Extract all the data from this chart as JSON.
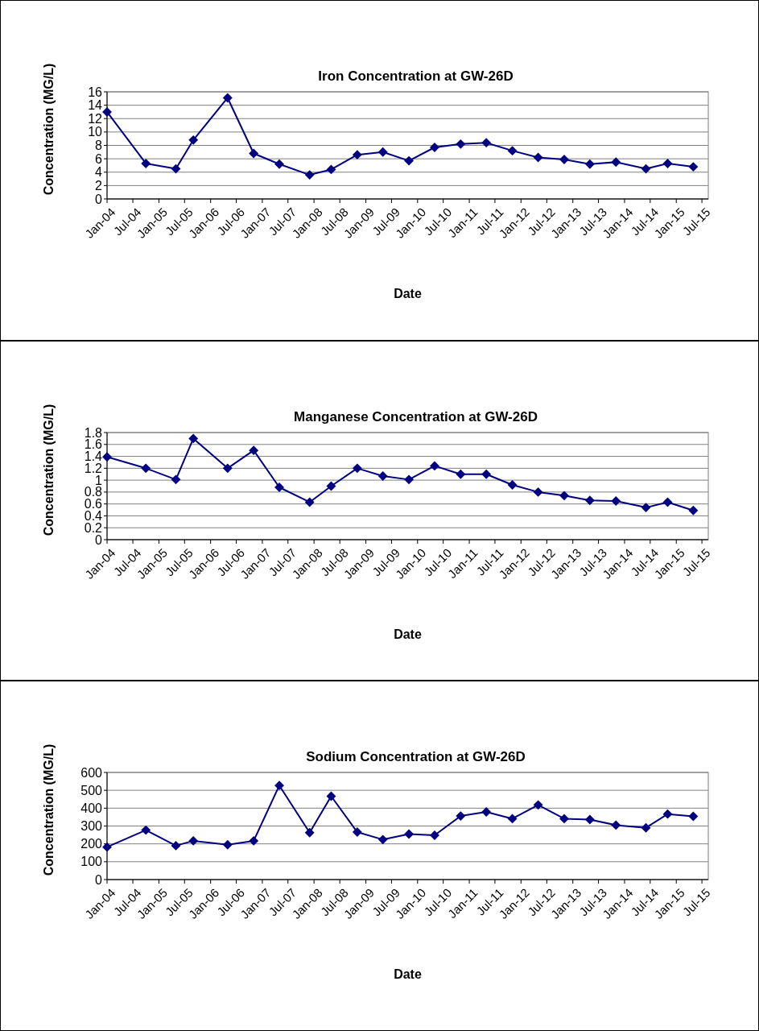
{
  "chart_data": [
    {
      "type": "line",
      "title": "Iron Concentration at GW-26D",
      "xlabel": "Date",
      "ylabel": "Concentration (MG/L)",
      "marker": "diamond",
      "grid": "y",
      "x": [
        "2004-01",
        "2004-10",
        "2005-05",
        "2005-09",
        "2006-05",
        "2006-11",
        "2007-05",
        "2007-12",
        "2008-05",
        "2008-11",
        "2009-05",
        "2009-11",
        "2010-05",
        "2010-11",
        "2011-05",
        "2011-11",
        "2012-05",
        "2012-11",
        "2013-05",
        "2013-11",
        "2014-06",
        "2014-11",
        "2015-05"
      ],
      "series": [
        {
          "color": "#000080",
          "values": [
            13.0,
            5.3,
            4.5,
            8.8,
            15.1,
            6.8,
            5.2,
            3.6,
            4.4,
            6.6,
            7.0,
            5.7,
            7.7,
            8.2,
            8.4,
            7.2,
            6.2,
            5.9,
            5.2,
            5.5,
            4.5,
            5.3,
            4.8
          ]
        }
      ],
      "xlim": [
        "2004-01",
        "2015-08-15"
      ],
      "ylim": [
        0,
        16
      ],
      "yticks": [
        0,
        2,
        4,
        6,
        8,
        10,
        12,
        14,
        16
      ],
      "xticks": [
        {
          "value": "2004-01",
          "label": "Jan-04"
        },
        {
          "value": "2004-07",
          "label": "Jul-04"
        },
        {
          "value": "2005-01",
          "label": "Jan-05"
        },
        {
          "value": "2005-07",
          "label": "Jul-05"
        },
        {
          "value": "2006-01",
          "label": "Jan-06"
        },
        {
          "value": "2006-07",
          "label": "Jul-06"
        },
        {
          "value": "2007-01",
          "label": "Jan-07"
        },
        {
          "value": "2007-07",
          "label": "Jul-07"
        },
        {
          "value": "2008-01",
          "label": "Jan-08"
        },
        {
          "value": "2008-07",
          "label": "Jul-08"
        },
        {
          "value": "2009-01",
          "label": "Jan-09"
        },
        {
          "value": "2009-07",
          "label": "Jul-09"
        },
        {
          "value": "2010-01",
          "label": "Jan-10"
        },
        {
          "value": "2010-07",
          "label": "Jul-10"
        },
        {
          "value": "2011-01",
          "label": "Jan-11"
        },
        {
          "value": "2011-07",
          "label": "Jul-11"
        },
        {
          "value": "2012-01",
          "label": "Jan-12"
        },
        {
          "value": "2012-07",
          "label": "Jul-12"
        },
        {
          "value": "2013-01",
          "label": "Jan-13"
        },
        {
          "value": "2013-07",
          "label": "Jul-13"
        },
        {
          "value": "2014-01",
          "label": "Jan-14"
        },
        {
          "value": "2014-07",
          "label": "Jul-14"
        },
        {
          "value": "2015-01",
          "label": "Jan-15"
        },
        {
          "value": "2015-07",
          "label": "Jul-15"
        }
      ]
    },
    {
      "type": "line",
      "title": "Manganese Concentration at GW-26D",
      "xlabel": "Date",
      "ylabel": "Concentration (MG/L)",
      "marker": "diamond",
      "grid": "y",
      "x": [
        "2004-01",
        "2004-10",
        "2005-05",
        "2005-09",
        "2006-05",
        "2006-11",
        "2007-05",
        "2007-12",
        "2008-05",
        "2008-11",
        "2009-05",
        "2009-11",
        "2010-05",
        "2010-11",
        "2011-05",
        "2011-11",
        "2012-05",
        "2012-11",
        "2013-05",
        "2013-11",
        "2014-06",
        "2014-11",
        "2015-05"
      ],
      "series": [
        {
          "color": "#000080",
          "values": [
            1.39,
            1.2,
            1.01,
            1.7,
            1.2,
            1.5,
            0.88,
            0.63,
            0.9,
            1.2,
            1.07,
            1.01,
            1.24,
            1.1,
            1.1,
            0.92,
            0.8,
            0.74,
            0.66,
            0.65,
            0.54,
            0.63,
            0.49
          ]
        }
      ],
      "xlim": [
        "2004-01",
        "2015-08-15"
      ],
      "ylim": [
        0,
        1.8
      ],
      "yticks": [
        0,
        0.2,
        0.4,
        0.6,
        0.8,
        1,
        1.2,
        1.4,
        1.6,
        1.8
      ],
      "xticks": [
        {
          "value": "2004-01",
          "label": "Jan-04"
        },
        {
          "value": "2004-07",
          "label": "Jul-04"
        },
        {
          "value": "2005-01",
          "label": "Jan-05"
        },
        {
          "value": "2005-07",
          "label": "Jul-05"
        },
        {
          "value": "2006-01",
          "label": "Jan-06"
        },
        {
          "value": "2006-07",
          "label": "Jul-06"
        },
        {
          "value": "2007-01",
          "label": "Jan-07"
        },
        {
          "value": "2007-07",
          "label": "Jul-07"
        },
        {
          "value": "2008-01",
          "label": "Jan-08"
        },
        {
          "value": "2008-07",
          "label": "Jul-08"
        },
        {
          "value": "2009-01",
          "label": "Jan-09"
        },
        {
          "value": "2009-07",
          "label": "Jul-09"
        },
        {
          "value": "2010-01",
          "label": "Jan-10"
        },
        {
          "value": "2010-07",
          "label": "Jul-10"
        },
        {
          "value": "2011-01",
          "label": "Jan-11"
        },
        {
          "value": "2011-07",
          "label": "Jul-11"
        },
        {
          "value": "2012-01",
          "label": "Jan-12"
        },
        {
          "value": "2012-07",
          "label": "Jul-12"
        },
        {
          "value": "2013-01",
          "label": "Jan-13"
        },
        {
          "value": "2013-07",
          "label": "Jul-13"
        },
        {
          "value": "2014-01",
          "label": "Jan-14"
        },
        {
          "value": "2014-07",
          "label": "Jul-14"
        },
        {
          "value": "2015-01",
          "label": "Jan-15"
        },
        {
          "value": "2015-07",
          "label": "Jul-15"
        }
      ]
    },
    {
      "type": "line",
      "title": "Sodium Concentration at GW-26D",
      "xlabel": "Date",
      "ylabel": "Concentration (MG/L)",
      "marker": "diamond",
      "grid": "y",
      "x": [
        "2004-01",
        "2004-10",
        "2005-05",
        "2005-09",
        "2006-05",
        "2006-11",
        "2007-05",
        "2007-12",
        "2008-05",
        "2008-11",
        "2009-05",
        "2009-11",
        "2010-05",
        "2010-11",
        "2011-05",
        "2011-11",
        "2012-05",
        "2012-11",
        "2013-05",
        "2013-11",
        "2014-06",
        "2014-11",
        "2015-05"
      ],
      "series": [
        {
          "color": "#000080",
          "values": [
            182,
            277,
            190,
            217,
            195,
            217,
            527,
            263,
            467,
            266,
            224,
            255,
            248,
            356,
            379,
            341,
            418,
            341,
            336,
            305,
            290,
            367,
            354
          ]
        }
      ],
      "xlim": [
        "2004-01",
        "2015-08-15"
      ],
      "ylim": [
        0,
        600
      ],
      "yticks": [
        0,
        100,
        200,
        300,
        400,
        500,
        600
      ],
      "xticks": [
        {
          "value": "2004-01",
          "label": "Jan-04"
        },
        {
          "value": "2004-07",
          "label": "Jul-04"
        },
        {
          "value": "2005-01",
          "label": "Jan-05"
        },
        {
          "value": "2005-07",
          "label": "Jul-05"
        },
        {
          "value": "2006-01",
          "label": "Jan-06"
        },
        {
          "value": "2006-07",
          "label": "Jul-06"
        },
        {
          "value": "2007-01",
          "label": "Jan-07"
        },
        {
          "value": "2007-07",
          "label": "Jul-07"
        },
        {
          "value": "2008-01",
          "label": "Jan-08"
        },
        {
          "value": "2008-07",
          "label": "Jul-08"
        },
        {
          "value": "2009-01",
          "label": "Jan-09"
        },
        {
          "value": "2009-07",
          "label": "Jul-09"
        },
        {
          "value": "2010-01",
          "label": "Jan-10"
        },
        {
          "value": "2010-07",
          "label": "Jul-10"
        },
        {
          "value": "2011-01",
          "label": "Jan-11"
        },
        {
          "value": "2011-07",
          "label": "Jul-11"
        },
        {
          "value": "2012-01",
          "label": "Jan-12"
        },
        {
          "value": "2012-07",
          "label": "Jul-12"
        },
        {
          "value": "2013-01",
          "label": "Jan-13"
        },
        {
          "value": "2013-07",
          "label": "Jul-13"
        },
        {
          "value": "2014-01",
          "label": "Jan-14"
        },
        {
          "value": "2014-07",
          "label": "Jul-14"
        },
        {
          "value": "2015-01",
          "label": "Jan-15"
        },
        {
          "value": "2015-07",
          "label": "Jul-15"
        }
      ]
    }
  ]
}
